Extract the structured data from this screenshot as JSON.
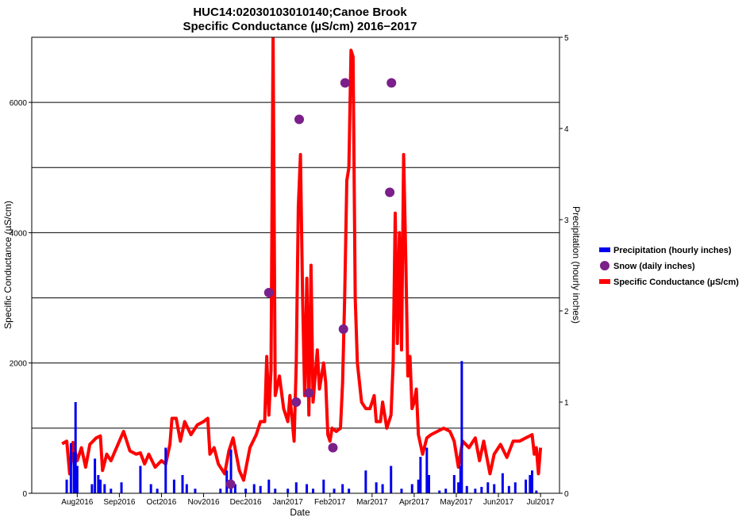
{
  "chart_data": {
    "type": "combo",
    "title": "HUC14:02030103010140;Canoe Brook",
    "subtitle": "Specific Conductance (µS/cm) 2016−2017",
    "x_label": "Date",
    "y_label": "Specific Conductance (µS/cm)",
    "y2_label": "Precipitation (hourly inches)",
    "xlim": [
      -1.08,
      11.45
    ],
    "xticks": [
      {
        "value": 0,
        "label": "Aug2016"
      },
      {
        "value": 1,
        "label": "Sep2016"
      },
      {
        "value": 2,
        "label": "Oct2016"
      },
      {
        "value": 3,
        "label": "Nov2016"
      },
      {
        "value": 4,
        "label": "Dec2016"
      },
      {
        "value": 5,
        "label": "Jan2017"
      },
      {
        "value": 6,
        "label": "Feb2017"
      },
      {
        "value": 7,
        "label": "Mar2017"
      },
      {
        "value": 8,
        "label": "Apr2017"
      },
      {
        "value": 9,
        "label": "May2017"
      },
      {
        "value": 10,
        "label": "Jun2017"
      },
      {
        "value": 11,
        "label": "Jul2017"
      }
    ],
    "ylim": [
      0,
      7000
    ],
    "yticks": [
      0,
      2000,
      4000,
      6000
    ],
    "ygrid": [
      1000,
      2000,
      3000,
      4000,
      5000,
      6000
    ],
    "y2lim": [
      0,
      5
    ],
    "y2ticks": [
      0,
      1,
      2,
      3,
      4,
      5
    ],
    "grid": true,
    "legend": "right",
    "series": [
      {
        "name": "Precipitation (hourly inches)",
        "type": "bar",
        "color": "#0000ee",
        "axis": "y2",
        "x": [
          -0.25,
          -0.15,
          -0.08,
          -0.04,
          0.0,
          0.35,
          0.42,
          0.5,
          0.55,
          0.65,
          0.8,
          1.05,
          1.5,
          1.75,
          1.9,
          2.1,
          2.3,
          2.5,
          2.6,
          2.8,
          3.4,
          3.55,
          3.65,
          3.75,
          4.0,
          4.2,
          4.35,
          4.55,
          4.7,
          5.0,
          5.2,
          5.45,
          5.6,
          5.85,
          6.1,
          6.3,
          6.45,
          6.85,
          7.1,
          7.25,
          7.45,
          7.7,
          7.95,
          8.1,
          8.15,
          8.3,
          8.35,
          8.6,
          8.75,
          8.95,
          9.05,
          9.1,
          9.13,
          9.25,
          9.45,
          9.6,
          9.75,
          9.9,
          10.1,
          10.25,
          10.4,
          10.65,
          10.75,
          10.8,
          10.9
        ],
        "values": [
          0.15,
          0.55,
          0.45,
          1.0,
          0.3,
          0.1,
          0.38,
          0.2,
          0.15,
          0.1,
          0.05,
          0.12,
          0.3,
          0.1,
          0.05,
          0.5,
          0.15,
          0.2,
          0.1,
          0.05,
          0.05,
          0.25,
          0.48,
          0.1,
          0.05,
          0.1,
          0.08,
          0.15,
          0.05,
          0.05,
          0.12,
          0.1,
          0.05,
          0.15,
          0.05,
          0.1,
          0.05,
          0.25,
          0.12,
          0.1,
          0.3,
          0.05,
          0.1,
          0.15,
          0.4,
          0.5,
          0.2,
          0.03,
          0.05,
          0.2,
          0.12,
          0.3,
          1.45,
          0.08,
          0.05,
          0.07,
          0.12,
          0.1,
          0.22,
          0.08,
          0.12,
          0.15,
          0.2,
          0.25,
          0.03
        ]
      },
      {
        "name": "Snow (daily inches)",
        "type": "scatter",
        "color": "#7b1f8a",
        "axis": "y2",
        "x": [
          3.64,
          4.55,
          5.2,
          5.27,
          5.5,
          6.07,
          6.32,
          6.36,
          7.42,
          7.46
        ],
        "values": [
          0.1,
          2.2,
          1.0,
          4.1,
          1.1,
          0.5,
          1.8,
          4.5,
          3.3,
          4.5
        ]
      },
      {
        "name": "Specific Conductance (µS/cm)",
        "type": "line",
        "color": "#ff0000",
        "x": [
          -0.36,
          -0.25,
          -0.18,
          -0.1,
          0.0,
          0.1,
          0.2,
          0.3,
          0.45,
          0.55,
          0.6,
          0.7,
          0.8,
          0.9,
          1.0,
          1.1,
          1.15,
          1.25,
          1.4,
          1.5,
          1.6,
          1.7,
          1.85,
          2.0,
          2.1,
          2.2,
          2.25,
          2.35,
          2.45,
          2.55,
          2.7,
          2.85,
          3.0,
          3.1,
          3.15,
          3.25,
          3.35,
          3.5,
          3.6,
          3.7,
          3.85,
          3.95,
          4.1,
          4.25,
          4.35,
          4.45,
          4.5,
          4.55,
          4.6,
          4.65,
          4.7,
          4.8,
          4.9,
          5.0,
          5.05,
          5.15,
          5.2,
          5.25,
          5.3,
          5.35,
          5.4,
          5.45,
          5.5,
          5.55,
          5.6,
          5.7,
          5.75,
          5.85,
          5.9,
          5.95,
          6.0,
          6.05,
          6.15,
          6.25,
          6.3,
          6.35,
          6.4,
          6.45,
          6.5,
          6.55,
          6.6,
          6.65,
          6.75,
          6.85,
          6.95,
          7.05,
          7.1,
          7.2,
          7.25,
          7.35,
          7.45,
          7.5,
          7.55,
          7.6,
          7.65,
          7.7,
          7.75,
          7.8,
          7.85,
          7.9,
          7.95,
          8.0,
          8.05,
          8.1,
          8.2,
          8.3,
          8.4,
          8.55,
          8.7,
          8.85,
          8.95,
          9.05,
          9.15,
          9.3,
          9.45,
          9.55,
          9.65,
          9.8,
          9.9,
          10.05,
          10.2,
          10.35,
          10.5,
          10.65,
          10.8,
          10.85,
          10.9,
          10.95,
          11.0
        ],
        "values": [
          760,
          800,
          300,
          780,
          500,
          700,
          400,
          750,
          850,
          880,
          350,
          600,
          500,
          650,
          800,
          950,
          850,
          650,
          600,
          620,
          450,
          600,
          400,
          500,
          450,
          750,
          1150,
          1150,
          800,
          1100,
          900,
          1050,
          1100,
          1150,
          600,
          700,
          450,
          300,
          650,
          850,
          350,
          200,
          700,
          900,
          1100,
          1100,
          2100,
          1200,
          1900,
          7000,
          1500,
          1800,
          1300,
          1100,
          1500,
          800,
          2000,
          4400,
          5200,
          3000,
          1500,
          3300,
          1200,
          3500,
          1400,
          2200,
          1600,
          2000,
          1700,
          900,
          800,
          1000,
          950,
          1000,
          1700,
          3000,
          4800,
          5000,
          6800,
          6700,
          3000,
          2000,
          1400,
          1300,
          1300,
          1500,
          1100,
          1100,
          1400,
          1000,
          1200,
          2000,
          4300,
          2300,
          4000,
          2200,
          5200,
          3600,
          1800,
          2100,
          1300,
          1400,
          1600,
          900,
          600,
          850,
          900,
          950,
          1000,
          950,
          800,
          400,
          800,
          700,
          850,
          500,
          800,
          300,
          600,
          750,
          550,
          800,
          800,
          850,
          900,
          600,
          700,
          300,
          700
        ]
      }
    ]
  }
}
